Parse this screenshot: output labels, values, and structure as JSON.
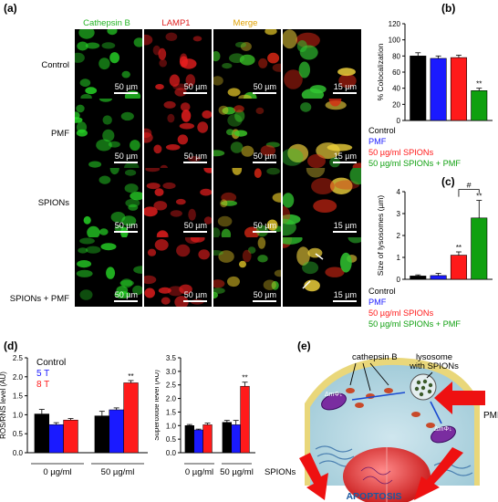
{
  "panels": {
    "a": "(a)",
    "b": "(b)",
    "c": "(c)",
    "d": "(d)",
    "e": "(e)"
  },
  "panel_a": {
    "columns": [
      {
        "label": "Cathepsin B",
        "color": "#22b422"
      },
      {
        "label": "LAMP1",
        "color": "#e02020"
      },
      {
        "label": "Merge",
        "color": "#e0a000"
      }
    ],
    "rows": [
      "Control",
      "PMF",
      "SPIONs",
      "SPIONs + PMF"
    ],
    "scale_small": "50 µm",
    "scale_zoom": "15 µm"
  },
  "legend": {
    "items": [
      {
        "label": "Control",
        "color": "#000000"
      },
      {
        "label": "PMF",
        "color": "#1a1aff"
      },
      {
        "label": "50 µg/ml SPIONs",
        "color": "#ff1a1a"
      },
      {
        "label": "50 µg/ml SPIONs + PMF",
        "color": "#10a010"
      }
    ]
  },
  "legend_d": {
    "items": [
      {
        "label": "Control",
        "color": "#000000"
      },
      {
        "label": "5 T",
        "color": "#1a1aff"
      },
      {
        "label": "8 T",
        "color": "#ff1a1a"
      }
    ]
  },
  "chart_data": [
    {
      "id": "b",
      "type": "bar",
      "ylabel": "% Colocalization",
      "ylim": [
        0,
        120
      ],
      "yticks": [
        "0",
        "20",
        "40",
        "60",
        "80",
        "100",
        "120"
      ],
      "categories": [
        "Control",
        "PMF",
        "50 µg/ml SPIONs",
        "50 µg/ml SPIONs + PMF"
      ],
      "values": [
        80,
        77,
        78,
        37
      ],
      "errors": [
        4,
        3,
        3,
        3
      ],
      "colors": [
        "#000000",
        "#1a1aff",
        "#ff1a1a",
        "#10a010"
      ],
      "annotations": [
        {
          "bar": 3,
          "text": "**"
        }
      ]
    },
    {
      "id": "c",
      "type": "bar",
      "ylabel": "Size of lysosomes (µm)",
      "ylim": [
        0,
        4
      ],
      "yticks": [
        "0",
        "1",
        "2",
        "3",
        "4"
      ],
      "categories": [
        "Control",
        "PMF",
        "50 µg/ml SPIONs",
        "50 µg/ml SPIONs + PMF"
      ],
      "values": [
        0.15,
        0.17,
        1.1,
        2.8
      ],
      "errors": [
        0.05,
        0.1,
        0.15,
        0.8
      ],
      "colors": [
        "#000000",
        "#1a1aff",
        "#ff1a1a",
        "#10a010"
      ],
      "annotations": [
        {
          "bar": 2,
          "text": "**"
        },
        {
          "bar": 3,
          "text": "**"
        },
        {
          "bracket": [
            2,
            3
          ],
          "text": "#"
        }
      ]
    },
    {
      "id": "d1",
      "type": "bar",
      "ylabel": "ROS/RNS level (AU)",
      "ylim": [
        0,
        2.5
      ],
      "yticks": [
        "0.0",
        "0.5",
        "1.0",
        "1.5",
        "2.0",
        "2.5"
      ],
      "groups": [
        "0 µg/ml",
        "50 µg/ml"
      ],
      "series": [
        {
          "name": "Control",
          "values": [
            1.02,
            0.97
          ],
          "errors": [
            0.12,
            0.12
          ]
        },
        {
          "name": "5 T",
          "values": [
            0.74,
            1.13
          ],
          "errors": [
            0.05,
            0.05
          ]
        },
        {
          "name": "8 T",
          "values": [
            0.86,
            1.84
          ],
          "errors": [
            0.04,
            0.06
          ]
        }
      ],
      "annotations": [
        {
          "group": 1,
          "series": 2,
          "text": "**"
        }
      ]
    },
    {
      "id": "d2",
      "type": "bar",
      "ylabel": "Superoxide level (AU)",
      "ylim": [
        0,
        3.5
      ],
      "yticks": [
        "0.0",
        "0.5",
        "1.0",
        "1.5",
        "2.0",
        "2.5",
        "3.0",
        "3.5"
      ],
      "groups": [
        "0 µg/ml",
        "50 µg/ml"
      ],
      "series": [
        {
          "name": "Control",
          "values": [
            1.0,
            1.12
          ],
          "errors": [
            0.04,
            0.07
          ]
        },
        {
          "name": "5 T",
          "values": [
            0.84,
            1.03
          ],
          "errors": [
            0.03,
            0.16
          ]
        },
        {
          "name": "8 T",
          "values": [
            1.03,
            2.45
          ],
          "errors": [
            0.06,
            0.15
          ]
        }
      ],
      "annotations": [
        {
          "group": 1,
          "series": 2,
          "text": "**"
        }
      ],
      "xaxis_extra": "SPIONs"
    }
  ],
  "panel_e": {
    "cathepsin": "cathepsin B",
    "lysosome_line1": "lysosome",
    "lysosome_line2": "with SPIONs",
    "pmf": "PMF",
    "dm_left": "ΔmΦ↓",
    "dm_right": "ΔmΦ↓",
    "apoptosis": "APOPTOSIS"
  }
}
